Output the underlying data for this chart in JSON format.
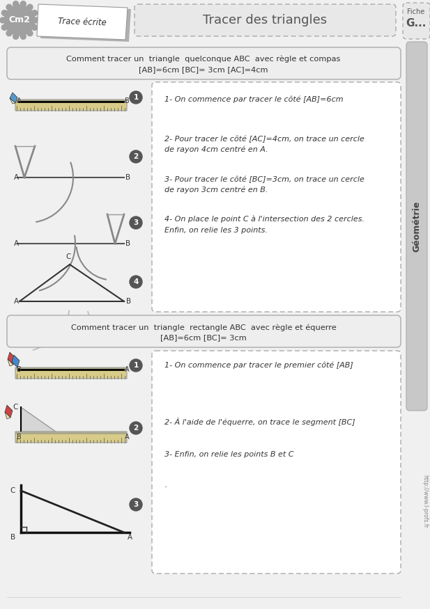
{
  "bg_color": "#f0f0f0",
  "white": "#ffffff",
  "section1_title_line1": "Comment tracer un  triangle  quelconque ABC  avec règle et compas",
  "section1_title_line2": "[AB]=6cm [BC]= 3cm [AC]=4cm",
  "section2_title_line1": "Comment tracer un  triangle  rectangle ABC  avec règle et équerre",
  "section2_title_line2": "[AB]=6cm [BC]= 3cm",
  "instructions1_l1": "1- On commence par tracer le côté [AB]=6cm",
  "instructions1_l2": "2- Pour tracer le côté [AC]=4cm, on trace un cercle",
  "instructions1_l3": "de rayon 4cm centré en A.",
  "instructions1_l4": "3- Pour tracer le côté [BC]=3cm, on trace un cercle",
  "instructions1_l5": "de rayon 3cm centré en B.",
  "instructions1_l6": "4- On place le point C à l'intersection des 2 cercles.",
  "instructions1_l7": "Enfin, on relie les 3 points.",
  "instructions2_l1": "1- On commence par tracer le premier côté [AB]",
  "instructions2_l2": "2- À l'aide de l'équerre, on trace le segment [BC]",
  "instructions2_l3": "3- Enfin, on relie les points B et C",
  "title_main": "Tracer des triangles",
  "label_cm2": "Cm2",
  "label_trace": "Trace écrite",
  "label_fiche": "Fiche",
  "label_g": "G...",
  "label_geo": "Géométrie",
  "url": "http://www.l-profs.fr"
}
